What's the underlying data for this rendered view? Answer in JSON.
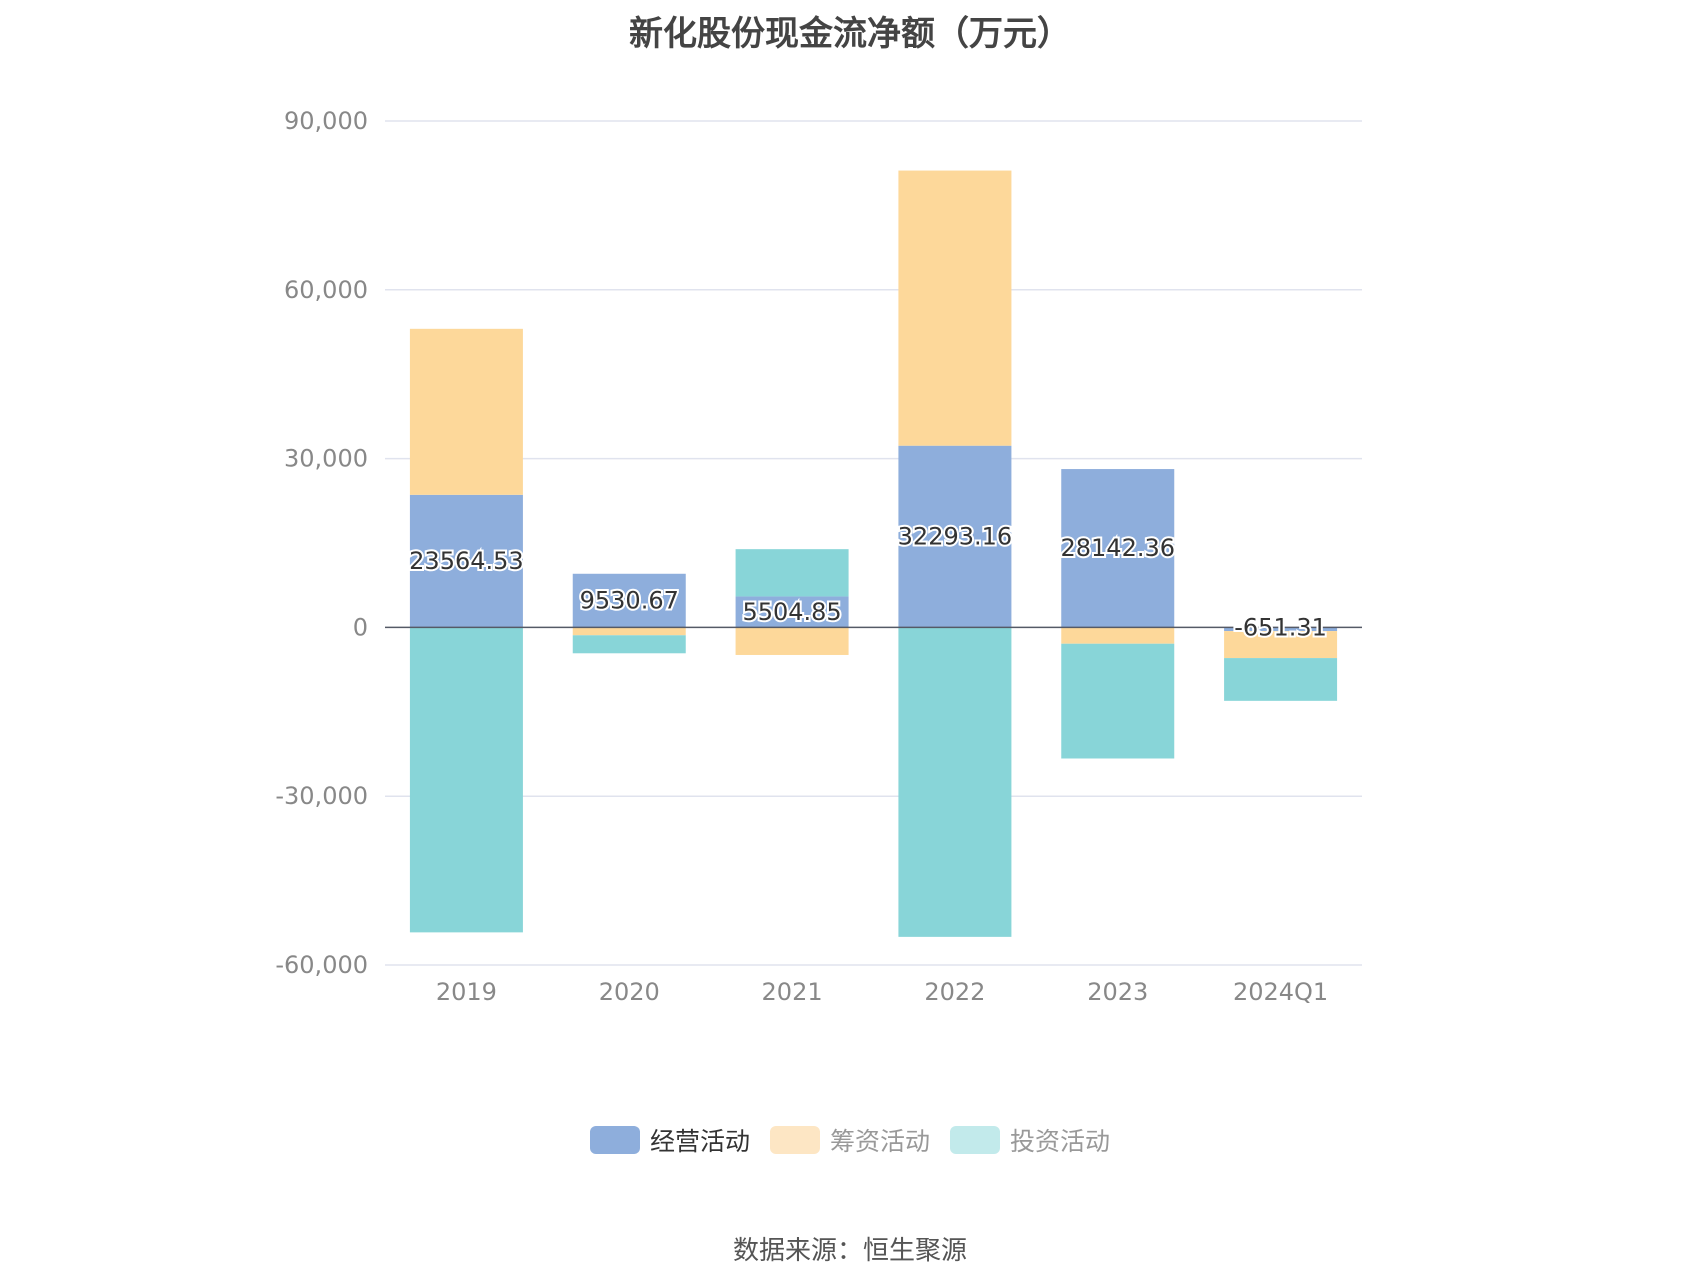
{
  "chart_data": {
    "type": "bar",
    "stacked": true,
    "title": "新化股份现金流净额（万元）",
    "categories": [
      "2019",
      "2020",
      "2021",
      "2022",
      "2023",
      "2024Q1"
    ],
    "ylim": [
      -60000,
      90000
    ],
    "yticks": [
      90000,
      60000,
      30000,
      0,
      -30000,
      -60000
    ],
    "ytick_labels": [
      "90,000",
      "60,000",
      "30,000",
      "0",
      "-30,000",
      "-60,000"
    ],
    "grid": true,
    "legend_position": "bottom",
    "series": [
      {
        "name": "经营活动",
        "color": "#8eaedc",
        "values": [
          23564.53,
          9530.67,
          5504.85,
          32293.16,
          28142.36,
          -651.31
        ],
        "data_labels": [
          "23564.53",
          "9530.67",
          "5504.85",
          "32293.16",
          "28142.36",
          "-651.31"
        ]
      },
      {
        "name": "筹资活动",
        "color": "#fdd89a",
        "values": [
          29500,
          -1400,
          -4900,
          48900,
          -2900,
          -4800
        ],
        "legend_color": "#fde6c4"
      },
      {
        "name": "投资活动",
        "color": "#88d5d8",
        "values": [
          -54200,
          -3200,
          8400,
          -55000,
          -20400,
          -7600
        ],
        "legend_color": "#c2eaeb"
      }
    ]
  },
  "legend": {
    "items": [
      {
        "label": "经营活动",
        "color": "#8eaedc",
        "text_color": "#333333"
      },
      {
        "label": "筹资活动",
        "color": "#fde6c4",
        "text_color": "#999999"
      },
      {
        "label": "投资活动",
        "color": "#c2eaeb",
        "text_color": "#999999"
      }
    ]
  },
  "source": "数据来源：恒生聚源"
}
